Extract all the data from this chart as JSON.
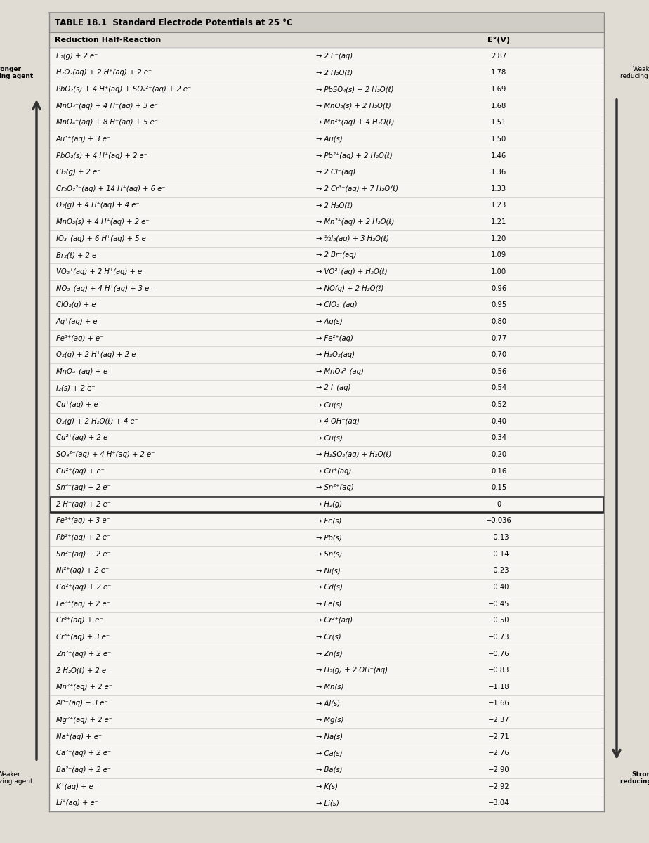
{
  "title": "TABLE 18.1  Standard Electrode Potentials at 25 °C",
  "col_header": "Reduction Half-Reaction",
  "col_e": "E°(V)",
  "rows": [
    {
      "left": "F₂(g) + 2 e⁻",
      "right": "→ 2 F⁻(aq)",
      "e": "2.87",
      "box": false
    },
    {
      "left": "H₂O₂(aq) + 2 H⁺(aq) + 2 e⁻",
      "right": "→ 2 H₂O(ℓ)",
      "e": "1.78",
      "box": false
    },
    {
      "left": "PbO₂(s) + 4 H⁺(aq) + SO₄²⁻(aq) + 2 e⁻",
      "right": "→ PbSO₄(s) + 2 H₂O(ℓ)",
      "e": "1.69",
      "box": false
    },
    {
      "left": "MnO₄⁻(aq) + 4 H⁺(aq) + 3 e⁻",
      "right": "→ MnO₂(s) + 2 H₂O(ℓ)",
      "e": "1.68",
      "box": false
    },
    {
      "left": "MnO₄⁻(aq) + 8 H⁺(aq) + 5 e⁻",
      "right": "→ Mn²⁺(aq) + 4 H₂O(ℓ)",
      "e": "1.51",
      "box": false
    },
    {
      "left": "Au³⁺(aq) + 3 e⁻",
      "right": "→ Au(s)",
      "e": "1.50",
      "box": false
    },
    {
      "left": "PbO₂(s) + 4 H⁺(aq) + 2 e⁻",
      "right": "→ Pb²⁺(aq) + 2 H₂O(ℓ)",
      "e": "1.46",
      "box": false
    },
    {
      "left": "Cl₂(g) + 2 e⁻",
      "right": "→ 2 Cl⁻(aq)",
      "e": "1.36",
      "box": false
    },
    {
      "left": "Cr₂O₇²⁻(aq) + 14 H⁺(aq) + 6 e⁻",
      "right": "→ 2 Cr³⁺(aq) + 7 H₂O(ℓ)",
      "e": "1.33",
      "box": false
    },
    {
      "left": "O₂(g) + 4 H⁺(aq) + 4 e⁻",
      "right": "→ 2 H₂O(ℓ)",
      "e": "1.23",
      "box": false
    },
    {
      "left": "MnO₂(s) + 4 H⁺(aq) + 2 e⁻",
      "right": "→ Mn²⁺(aq) + 2 H₂O(ℓ)",
      "e": "1.21",
      "box": false
    },
    {
      "left": "IO₃⁻(aq) + 6 H⁺(aq) + 5 e⁻",
      "right": "→ ½I₂(aq) + 3 H₂O(ℓ)",
      "e": "1.20",
      "box": false
    },
    {
      "left": "Br₂(ℓ) + 2 e⁻",
      "right": "→ 2 Br⁻(aq)",
      "e": "1.09",
      "box": false
    },
    {
      "left": "VO₂⁺(aq) + 2 H⁺(aq) + e⁻",
      "right": "→ VO²⁺(aq) + H₂O(ℓ)",
      "e": "1.00",
      "box": false
    },
    {
      "left": "NO₃⁻(aq) + 4 H⁺(aq) + 3 e⁻",
      "right": "→ NO(g) + 2 H₂O(ℓ)",
      "e": "0.96",
      "box": false
    },
    {
      "left": "ClO₂(g) + e⁻",
      "right": "→ ClO₂⁻(aq)",
      "e": "0.95",
      "box": false
    },
    {
      "left": "Ag⁺(aq) + e⁻",
      "right": "→ Ag(s)",
      "e": "0.80",
      "box": false
    },
    {
      "left": "Fe³⁺(aq) + e⁻",
      "right": "→ Fe²⁺(aq)",
      "e": "0.77",
      "box": false
    },
    {
      "left": "O₂(g) + 2 H⁺(aq) + 2 e⁻",
      "right": "→ H₂O₂(aq)",
      "e": "0.70",
      "box": false
    },
    {
      "left": "MnO₄⁻(aq) + e⁻",
      "right": "→ MnO₄²⁻(aq)",
      "e": "0.56",
      "box": false
    },
    {
      "left": "I₂(s) + 2 e⁻",
      "right": "→ 2 I⁻(aq)",
      "e": "0.54",
      "box": false
    },
    {
      "left": "Cu⁺(aq) + e⁻",
      "right": "→ Cu(s)",
      "e": "0.52",
      "box": false
    },
    {
      "left": "O₂(g) + 2 H₂O(ℓ) + 4 e⁻",
      "right": "→ 4 OH⁻(aq)",
      "e": "0.40",
      "box": false
    },
    {
      "left": "Cu²⁺(aq) + 2 e⁻",
      "right": "→ Cu(s)",
      "e": "0.34",
      "box": false
    },
    {
      "left": "SO₄²⁻(aq) + 4 H⁺(aq) + 2 e⁻",
      "right": "→ H₂SO₃(aq) + H₂O(ℓ)",
      "e": "0.20",
      "box": false
    },
    {
      "left": "Cu²⁺(aq) + e⁻",
      "right": "→ Cu⁺(aq)",
      "e": "0.16",
      "box": false
    },
    {
      "left": "Sn⁴⁺(aq) + 2 e⁻",
      "right": "→ Sn²⁺(aq)",
      "e": "0.15",
      "box": false
    },
    {
      "left": "2 H⁺(aq) + 2 e⁻",
      "right": "→ H₂(g)",
      "e": "0",
      "box": true
    },
    {
      "left": "Fe³⁺(aq) + 3 e⁻",
      "right": "→ Fe(s)",
      "e": "−0.036",
      "box": false
    },
    {
      "left": "Pb²⁺(aq) + 2 e⁻",
      "right": "→ Pb(s)",
      "e": "−0.13",
      "box": false
    },
    {
      "left": "Sn²⁺(aq) + 2 e⁻",
      "right": "→ Sn(s)",
      "e": "−0.14",
      "box": false
    },
    {
      "left": "Ni²⁺(aq) + 2 e⁻",
      "right": "→ Ni(s)",
      "e": "−0.23",
      "box": false
    },
    {
      "left": "Cd²⁺(aq) + 2 e⁻",
      "right": "→ Cd(s)",
      "e": "−0.40",
      "box": false
    },
    {
      "left": "Fe²⁺(aq) + 2 e⁻",
      "right": "→ Fe(s)",
      "e": "−0.45",
      "box": false
    },
    {
      "left": "Cr³⁺(aq) + e⁻",
      "right": "→ Cr²⁺(aq)",
      "e": "−0.50",
      "box": false
    },
    {
      "left": "Cr³⁺(aq) + 3 e⁻",
      "right": "→ Cr(s)",
      "e": "−0.73",
      "box": false
    },
    {
      "left": "Zn²⁺(aq) + 2 e⁻",
      "right": "→ Zn(s)",
      "e": "−0.76",
      "box": false
    },
    {
      "left": "2 H₂O(ℓ) + 2 e⁻",
      "right": "→ H₂(g) + 2 OH⁻(aq)",
      "e": "−0.83",
      "box": false
    },
    {
      "left": "Mn²⁺(aq) + 2 e⁻",
      "right": "→ Mn(s)",
      "e": "−1.18",
      "box": false
    },
    {
      "left": "Al³⁺(aq) + 3 e⁻",
      "right": "→ Al(s)",
      "e": "−1.66",
      "box": false
    },
    {
      "left": "Mg²⁺(aq) + 2 e⁻",
      "right": "→ Mg(s)",
      "e": "−2.37",
      "box": false
    },
    {
      "left": "Na⁺(aq) + e⁻",
      "right": "→ Na(s)",
      "e": "−2.71",
      "box": false
    },
    {
      "left": "Ca²⁺(aq) + 2 e⁻",
      "right": "→ Ca(s)",
      "e": "−2.76",
      "box": false
    },
    {
      "left": "Ba²⁺(aq) + 2 e⁻",
      "right": "→ Ba(s)",
      "e": "−2.90",
      "box": false
    },
    {
      "left": "K⁺(aq) + e⁻",
      "right": "→ K(s)",
      "e": "−2.92",
      "box": false
    },
    {
      "left": "Li⁺(aq) + e⁻",
      "right": "→ Li(s)",
      "e": "−3.04",
      "box": false
    }
  ],
  "stronger_ox_label": "Stronger\noxidizing agent",
  "weaker_ox_label": "Weaker\noxidizing agent",
  "stronger_red_label": "Stronger\nreducing agent",
  "weaker_red_label": "Weaker\nreducing agent",
  "title_fontsize": 8.5,
  "header_fontsize": 8.0,
  "row_fontsize": 7.2,
  "side_fontsize": 6.5,
  "table_bg": "#f7f5f2",
  "title_bg": "#d0ccc6",
  "header_bg": "#e0dcd6",
  "row_line_color": "#bbbbbb",
  "page_bg": "#e0dbd3"
}
